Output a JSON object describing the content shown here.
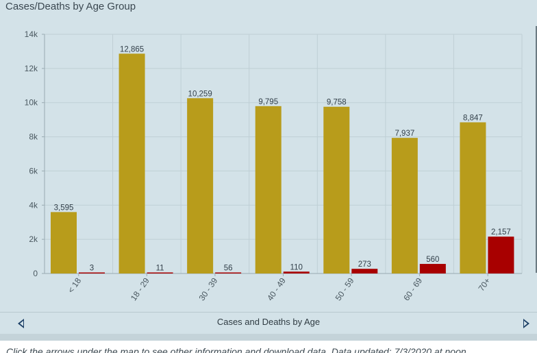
{
  "panel": {
    "title": "Cases/Deaths by Age Group"
  },
  "navigation": {
    "label": "Cases and Deaths by Age"
  },
  "footer": {
    "text": "Click the arrows under the map to see other information and download data. Data updated: 7/3/2020 at noon"
  },
  "colors": {
    "cases": "#b89c1b",
    "deaths": "#a80000",
    "background": "#d3e2e8",
    "grid": "#bfcfd5"
  },
  "chart_data": {
    "type": "bar",
    "categories": [
      "< 18",
      "18 - 29",
      "30 - 39",
      "40 - 49",
      "50 - 59",
      "60 - 69",
      "70+"
    ],
    "series": [
      {
        "values": [
          3595,
          12865,
          10259,
          9795,
          9758,
          7937,
          8847
        ]
      },
      {
        "values": [
          3,
          11,
          56,
          110,
          273,
          560,
          2157
        ]
      }
    ],
    "data_labels": [
      [
        "3,595",
        "12,865",
        "10,259",
        "9,795",
        "9,758",
        "7,937",
        "8,847"
      ],
      [
        "3",
        "11",
        "56",
        "110",
        "273",
        "560",
        "2,157"
      ]
    ],
    "ylim": [
      0,
      14000
    ],
    "yticks": [
      0,
      2000,
      4000,
      6000,
      8000,
      10000,
      12000,
      14000
    ],
    "ytick_labels": [
      "0",
      "2k",
      "4k",
      "6k",
      "8k",
      "10k",
      "12k",
      "14k"
    ],
    "grid": true,
    "legend": "none"
  }
}
